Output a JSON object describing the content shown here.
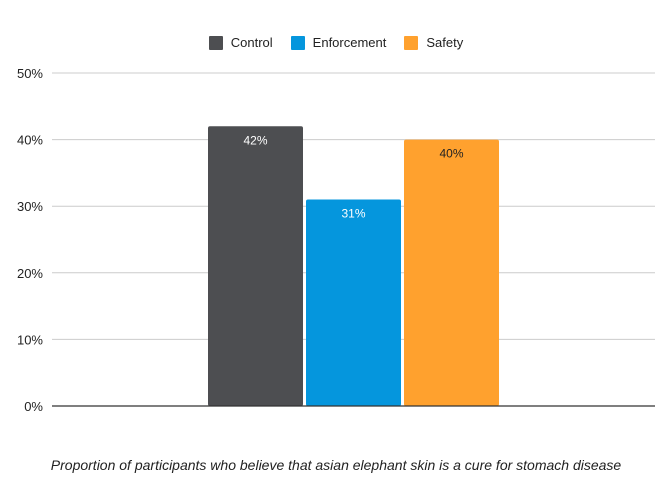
{
  "chart_data": {
    "type": "bar",
    "categories": [
      ""
    ],
    "series": [
      {
        "name": "Control",
        "values": [
          42
        ],
        "color": "#4d4e51",
        "label": "42%",
        "label_color": "#ffffff"
      },
      {
        "name": "Enforcement",
        "values": [
          31
        ],
        "color": "#0596dd",
        "label": "31%",
        "label_color": "#ffffff"
      },
      {
        "name": "Safety",
        "values": [
          40
        ],
        "color": "#ffa12e",
        "label": "40%",
        "label_color": "#222222"
      }
    ],
    "title": "",
    "xlabel": "Proportion of participants who believe that asian elephant skin is a cure for stomach disease",
    "ylabel": "",
    "ylim": [
      0,
      50
    ],
    "yticks": [
      0,
      10,
      20,
      30,
      40,
      50
    ],
    "ytick_labels": [
      "0%",
      "10%",
      "20%",
      "30%",
      "40%",
      "50%"
    ],
    "grid": true,
    "legend_position": "top-center"
  }
}
